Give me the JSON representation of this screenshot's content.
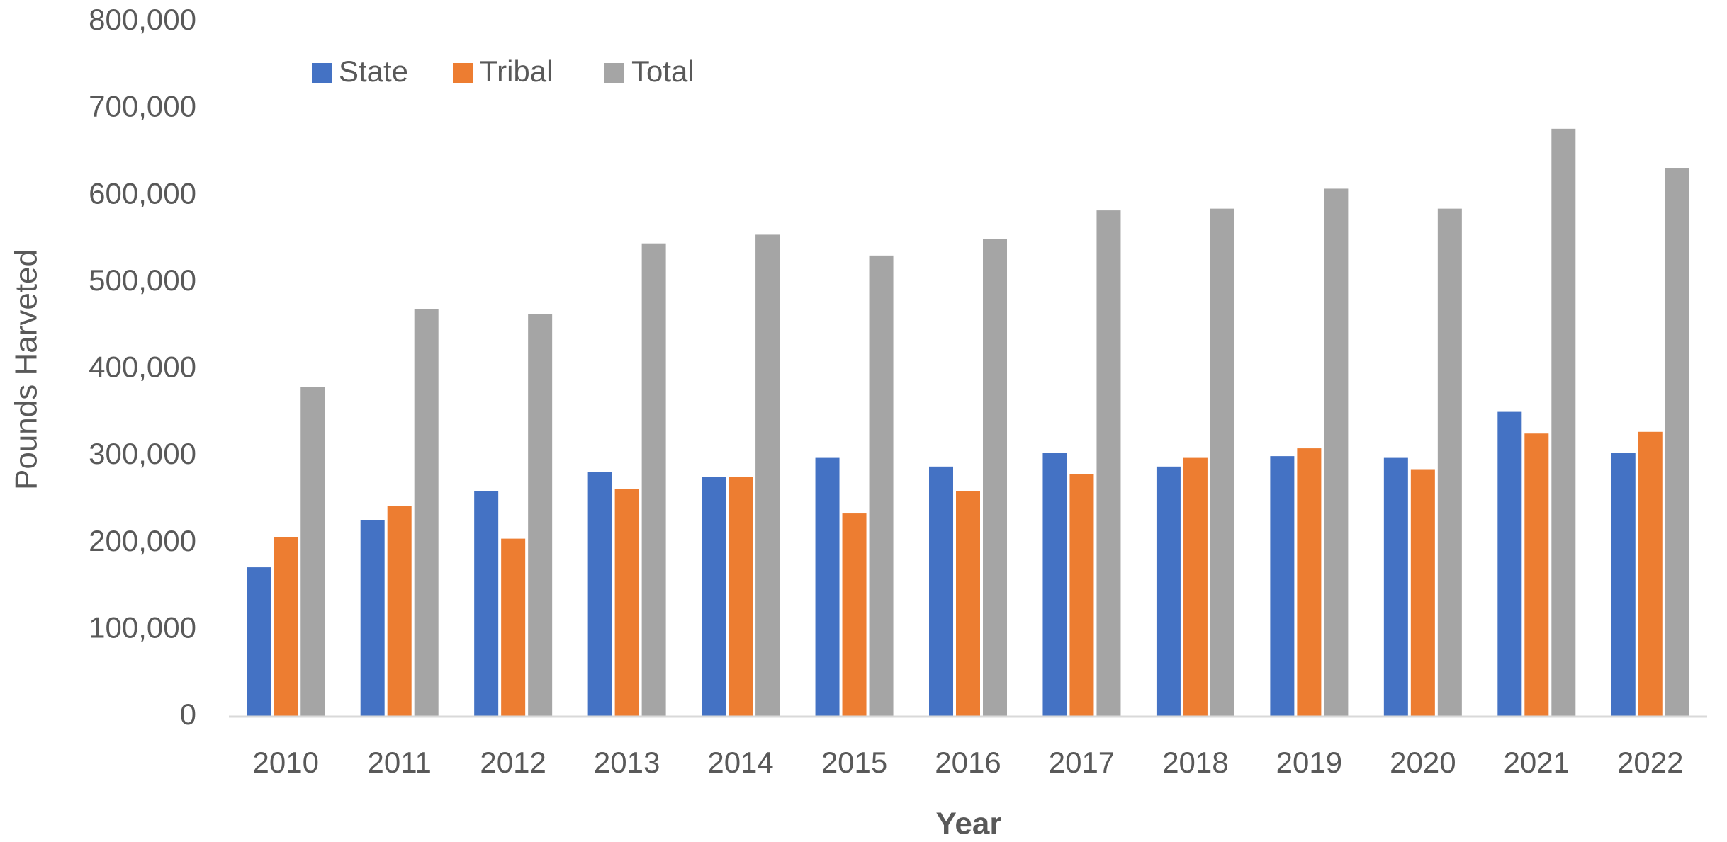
{
  "chart_data": {
    "type": "bar",
    "x_label": "Year",
    "y_label": "Pounds Harveted",
    "categories": [
      "2010",
      "2011",
      "2012",
      "2013",
      "2014",
      "2015",
      "2016",
      "2017",
      "2018",
      "2019",
      "2020",
      "2021",
      "2022"
    ],
    "series": [
      {
        "name": "State",
        "color": "#4472c4",
        "values": [
          172000,
          226000,
          260000,
          282000,
          276000,
          298000,
          288000,
          304000,
          288000,
          300000,
          298000,
          351000,
          304000
        ]
      },
      {
        "name": "Tribal",
        "color": "#ed7d31",
        "values": [
          207000,
          243000,
          205000,
          262000,
          276000,
          234000,
          260000,
          279000,
          298000,
          309000,
          285000,
          326000,
          328000
        ]
      },
      {
        "name": "Total",
        "color": "#a5a5a5",
        "values": [
          380000,
          469000,
          464000,
          545000,
          555000,
          531000,
          550000,
          583000,
          585000,
          608000,
          585000,
          677000,
          632000
        ]
      }
    ],
    "ylim": [
      0,
      800000
    ],
    "yticks": [
      0,
      {
        "value": 100000,
        "label": "100,000"
      },
      {
        "value": 200000,
        "label": "200,000"
      },
      {
        "value": 300000,
        "label": "300,000"
      },
      {
        "value": 400000,
        "label": "400,000"
      },
      {
        "value": 500000,
        "label": "500,000"
      },
      {
        "value": 600000,
        "label": "600,000"
      },
      {
        "value": 700000,
        "label": "700,000"
      },
      {
        "value": 800000,
        "label": "800,000"
      }
    ],
    "grid": false,
    "legend": "top-left"
  }
}
